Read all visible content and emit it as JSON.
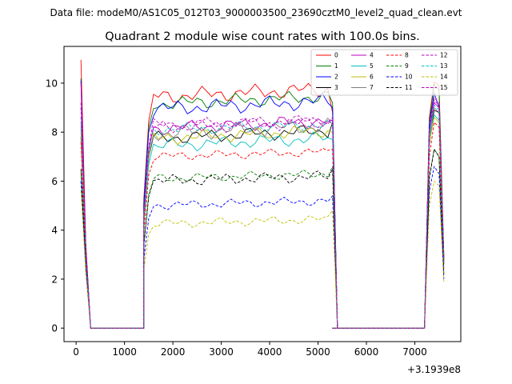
{
  "chart_data": {
    "type": "line",
    "suptitle": "Data file: modeM0/AS1C05_012T03_9000003500_23690cztM0_level2_quad_clean.evt",
    "title": "Quadrant 2 module wise count rates with 100.0s bins.",
    "xlabel": "",
    "ylabel": "",
    "x_offset_label": "+3.1939e8",
    "xlim": [
      -250,
      7950
    ],
    "ylim": [
      -0.55,
      11.5
    ],
    "xticks": [
      0,
      1000,
      2000,
      3000,
      4000,
      5000,
      6000,
      7000
    ],
    "xtick_labels": [
      "0",
      "1000",
      "2000",
      "3000",
      "4000",
      "5000",
      "6000",
      "7000"
    ],
    "yticks": [
      0,
      2,
      4,
      6,
      8,
      10
    ],
    "ytick_labels": [
      "0",
      "2",
      "4",
      "6",
      "8",
      "10"
    ],
    "grid": false,
    "legend_position": "top-right",
    "segments_x": {
      "start": [
        100,
        200,
        300
      ],
      "zero_mid": [
        400,
        500,
        600,
        700,
        800,
        900,
        1000,
        1100,
        1200,
        1300
      ],
      "body_start": 1400,
      "body_step": 100,
      "body_count": 40,
      "zero_gap": [
        5300,
        5400,
        5500,
        5600,
        5700,
        5800,
        5900,
        6000,
        6100,
        6200,
        6300,
        6400,
        6500,
        6600,
        6700,
        6800,
        6900,
        7000,
        7100,
        7200
      ],
      "end": [
        7200,
        7300,
        7400,
        7500,
        7600
      ]
    },
    "series": [
      {
        "name": "0",
        "color": "#ff0000",
        "dash": "solid",
        "start": [
          10.95,
          3.5,
          0.0
        ],
        "base": 9.6,
        "spread": 0.35,
        "edge_last": 8.8,
        "end": [
          0.0,
          8.6,
          10.05,
          9.9,
          3.0
        ]
      },
      {
        "name": "1",
        "color": "#008000",
        "dash": "solid",
        "start": [
          10.2,
          3.4,
          0.0
        ],
        "base": 9.3,
        "spread": 0.3,
        "edge_last": 9.2,
        "end": [
          0.0,
          8.4,
          9.95,
          9.7,
          2.8
        ]
      },
      {
        "name": "2",
        "color": "#0000ff",
        "dash": "solid",
        "start": [
          10.1,
          3.3,
          0.0
        ],
        "base": 9.1,
        "spread": 0.35,
        "edge_last": 9.0,
        "end": [
          0.0,
          8.3,
          9.6,
          9.0,
          2.9
        ]
      },
      {
        "name": "3",
        "color": "#000000",
        "dash": "solid",
        "start": [
          7.8,
          3.0,
          0.0
        ],
        "base": 7.9,
        "spread": 0.3,
        "edge_last": 8.4,
        "end": [
          0.0,
          7.5,
          8.9,
          8.8,
          2.8
        ]
      },
      {
        "name": "4",
        "color": "#bf00bf",
        "dash": "solid",
        "start": [
          10.0,
          3.3,
          0.0
        ],
        "base": 8.3,
        "spread": 0.3,
        "edge_last": 8.5,
        "end": [
          0.0,
          8.0,
          9.2,
          9.0,
          2.6
        ]
      },
      {
        "name": "5",
        "color": "#00bfbf",
        "dash": "solid",
        "start": [
          8.2,
          3.1,
          0.0
        ],
        "base": 7.6,
        "spread": 0.3,
        "edge_last": 7.7,
        "end": [
          0.0,
          7.8,
          8.7,
          8.5,
          2.6
        ]
      },
      {
        "name": "6",
        "color": "#bfbf00",
        "dash": "solid",
        "start": [
          8.0,
          3.0,
          0.0
        ],
        "base": 7.9,
        "spread": 0.3,
        "edge_last": 8.0,
        "end": [
          0.0,
          7.6,
          8.6,
          8.4,
          2.7
        ]
      },
      {
        "name": "7",
        "color": "#808080",
        "dash": "solid",
        "start": [
          8.4,
          3.1,
          0.0
        ],
        "base": 8.1,
        "spread": 0.35,
        "edge_last": 8.3,
        "end": [
          0.0,
          7.9,
          9.0,
          8.8,
          2.7
        ]
      },
      {
        "name": "8",
        "color": "#ff0000",
        "dash": "dashed",
        "start": [
          7.6,
          2.9,
          0.0
        ],
        "base": 7.1,
        "spread": 0.2,
        "edge_last": 7.3,
        "end": [
          0.0,
          7.0,
          8.4,
          8.2,
          2.4
        ]
      },
      {
        "name": "9",
        "color": "#008000",
        "dash": "dashed",
        "start": [
          6.4,
          2.6,
          0.0
        ],
        "base": 6.2,
        "spread": 0.2,
        "edge_last": 6.6,
        "end": [
          0.0,
          6.2,
          7.3,
          7.0,
          2.2
        ]
      },
      {
        "name": "10",
        "color": "#0000ff",
        "dash": "dashed",
        "start": [
          6.0,
          2.4,
          0.0
        ],
        "base": 5.1,
        "spread": 0.2,
        "edge_last": 5.4,
        "end": [
          0.0,
          5.6,
          6.6,
          6.3,
          2.0
        ]
      },
      {
        "name": "11",
        "color": "#000000",
        "dash": "dashed",
        "start": [
          6.5,
          2.6,
          0.0
        ],
        "base": 6.1,
        "spread": 0.25,
        "edge_last": 6.5,
        "end": [
          0.0,
          6.1,
          7.3,
          7.0,
          2.2
        ]
      },
      {
        "name": "12",
        "color": "#bf00bf",
        "dash": "dashed",
        "start": [
          9.2,
          3.2,
          0.0
        ],
        "base": 8.4,
        "spread": 0.25,
        "edge_last": 8.6,
        "end": [
          0.0,
          8.1,
          9.4,
          9.2,
          2.8
        ]
      },
      {
        "name": "13",
        "color": "#00bfbf",
        "dash": "dashed",
        "start": [
          8.6,
          3.1,
          0.0
        ],
        "base": 8.2,
        "spread": 0.25,
        "edge_last": 8.3,
        "end": [
          0.0,
          8.0,
          9.1,
          8.9,
          2.7
        ]
      },
      {
        "name": "14",
        "color": "#bfbf00",
        "dash": "dashed",
        "start": [
          5.6,
          2.3,
          0.0
        ],
        "base": 4.35,
        "spread": 0.2,
        "edge_last": 4.8,
        "end": [
          0.0,
          5.0,
          6.0,
          5.8,
          1.9
        ]
      },
      {
        "name": "15",
        "color": "#bf00bf",
        "dash": "dashed",
        "start": [
          9.0,
          3.2,
          0.0
        ],
        "base": 8.3,
        "spread": 0.3,
        "edge_last": 8.5,
        "end": [
          0.0,
          8.0,
          9.3,
          9.1,
          2.8
        ]
      }
    ]
  }
}
